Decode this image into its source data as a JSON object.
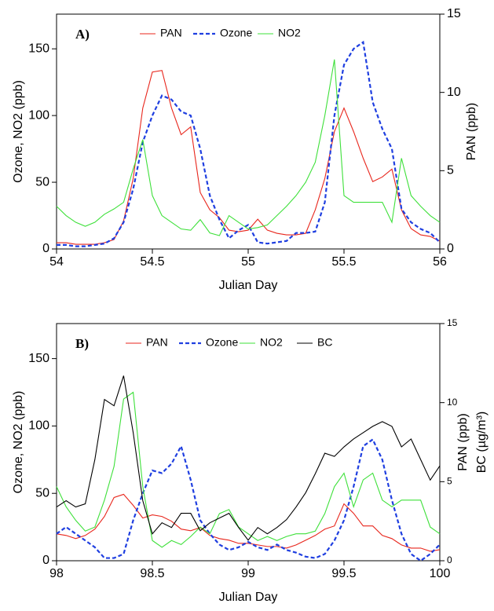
{
  "chart_data": [
    {
      "type": "line",
      "panel_label": "A)",
      "xlabel": "Julian Day",
      "ylabel": "Ozone, NO2 (ppb)",
      "y2labels": [
        "PAN (ppb)"
      ],
      "xlim": [
        54,
        56
      ],
      "xticks": [
        54,
        54.5,
        55,
        55.5,
        56
      ],
      "ylim": [
        0,
        176
      ],
      "yticks": [
        0,
        50,
        100,
        150
      ],
      "y2lim": [
        0,
        15
      ],
      "y2ticks": [
        0,
        5,
        10,
        15
      ],
      "x": [
        54,
        54.05,
        54.1,
        54.15,
        54.2,
        54.25,
        54.3,
        54.35,
        54.4,
        54.45,
        54.5,
        54.55,
        54.6,
        54.65,
        54.7,
        54.75,
        54.8,
        54.85,
        54.9,
        54.95,
        55,
        55.05,
        55.1,
        55.15,
        55.2,
        55.25,
        55.3,
        55.35,
        55.4,
        55.45,
        55.5,
        55.55,
        55.6,
        55.65,
        55.7,
        55.75,
        55.8,
        55.85,
        55.9,
        55.95,
        56
      ],
      "series": [
        {
          "name": "PAN",
          "color": "#e8261c",
          "dashed": false,
          "axis": "y2",
          "values": [
            0.4,
            0.4,
            0.3,
            0.3,
            0.3,
            0.4,
            0.6,
            1.8,
            4.5,
            9,
            11.3,
            11.4,
            9,
            7.3,
            7.8,
            3.6,
            2.5,
            2,
            1.2,
            1.1,
            1.2,
            1.9,
            1.2,
            1,
            0.9,
            0.9,
            1,
            2.5,
            4.5,
            7.5,
            9,
            7.5,
            5.8,
            4.3,
            4.6,
            5.1,
            2.5,
            1.3,
            0.9,
            0.8,
            0.5
          ]
        },
        {
          "name": "Ozone",
          "color": "#1f3fe0",
          "dashed": true,
          "axis": "y",
          "values": [
            3,
            3,
            2,
            2,
            3,
            4,
            8,
            20,
            45,
            80,
            100,
            115,
            112,
            103,
            100,
            75,
            40,
            22,
            8,
            14,
            18,
            5,
            4,
            5,
            6,
            12,
            12,
            13,
            35,
            100,
            138,
            150,
            155,
            110,
            90,
            75,
            30,
            20,
            15,
            12,
            5
          ]
        },
        {
          "name": "NO2",
          "color": "#3ee03a",
          "dashed": false,
          "axis": "y",
          "values": [
            32,
            25,
            20,
            17,
            20,
            26,
            30,
            35,
            60,
            82,
            40,
            25,
            20,
            15,
            14,
            22,
            12,
            10,
            25,
            20,
            15,
            16,
            18,
            25,
            32,
            40,
            50,
            65,
            100,
            142,
            40,
            35,
            35,
            35,
            35,
            20,
            68,
            40,
            32,
            25,
            20
          ]
        }
      ]
    },
    {
      "type": "line",
      "panel_label": "B)",
      "xlabel": "Julian Day",
      "ylabel": "Ozone, NO2 (ppb)",
      "y2labels": [
        "PAN (ppb)",
        "BC (µg/m³)"
      ],
      "xlim": [
        98,
        100
      ],
      "xticks": [
        98,
        98.5,
        99,
        99.5,
        100
      ],
      "ylim": [
        0,
        176
      ],
      "yticks": [
        0,
        50,
        100,
        150
      ],
      "y2lim": [
        0,
        15
      ],
      "y2ticks": [
        0,
        5,
        10,
        15
      ],
      "x": [
        98,
        98.05,
        98.1,
        98.15,
        98.2,
        98.25,
        98.3,
        98.35,
        98.4,
        98.45,
        98.5,
        98.55,
        98.6,
        98.65,
        98.7,
        98.75,
        98.8,
        98.85,
        98.9,
        98.95,
        99,
        99.05,
        99.1,
        99.15,
        99.2,
        99.25,
        99.3,
        99.35,
        99.4,
        99.45,
        99.5,
        99.55,
        99.6,
        99.65,
        99.7,
        99.75,
        99.8,
        99.85,
        99.9,
        99.95,
        100
      ],
      "series": [
        {
          "name": "PAN",
          "color": "#e8261c",
          "dashed": false,
          "axis": "y2",
          "values": [
            1.7,
            1.6,
            1.4,
            1.6,
            2,
            2.8,
            4,
            4.2,
            3.5,
            2.7,
            2.9,
            2.8,
            2.5,
            2,
            1.9,
            2.1,
            1.6,
            1.4,
            1.3,
            1.1,
            1.1,
            1,
            0.9,
            0.9,
            0.8,
            1,
            1.3,
            1.6,
            2,
            2.2,
            3.6,
            3,
            2.2,
            2.2,
            1.6,
            1.4,
            1,
            0.8,
            0.8,
            0.6,
            0.7
          ]
        },
        {
          "name": "Ozone",
          "color": "#1f3fe0",
          "dashed": true,
          "axis": "y",
          "values": [
            20,
            25,
            20,
            15,
            10,
            2,
            2,
            5,
            30,
            50,
            67,
            65,
            72,
            85,
            60,
            30,
            20,
            12,
            8,
            10,
            14,
            10,
            8,
            12,
            8,
            6,
            3,
            2,
            5,
            15,
            30,
            55,
            85,
            90,
            75,
            45,
            20,
            5,
            0,
            5,
            12
          ]
        },
        {
          "name": "NO2",
          "color": "#3ee03a",
          "dashed": false,
          "axis": "y",
          "values": [
            55,
            40,
            30,
            22,
            25,
            45,
            70,
            120,
            125,
            55,
            15,
            10,
            15,
            12,
            18,
            25,
            20,
            35,
            38,
            25,
            20,
            15,
            18,
            15,
            18,
            20,
            20,
            22,
            35,
            55,
            65,
            40,
            60,
            65,
            45,
            40,
            45,
            45,
            45,
            25,
            20
          ]
        },
        {
          "name": "BC",
          "color": "#000000",
          "dashed": false,
          "axis": "y2",
          "values": [
            3.4,
            3.8,
            3.4,
            3.6,
            6.4,
            10.2,
            9.8,
            11.7,
            8.1,
            3.8,
            1.7,
            2.4,
            2.1,
            3,
            3,
            1.9,
            2.4,
            2.7,
            3,
            2.1,
            1.3,
            2.1,
            1.7,
            2.1,
            2.6,
            3.4,
            4.3,
            5.5,
            6.8,
            6.6,
            7.2,
            7.7,
            8.1,
            8.5,
            8.8,
            8.5,
            7.2,
            7.7,
            6.4,
            5.1,
            6
          ]
        }
      ]
    }
  ]
}
